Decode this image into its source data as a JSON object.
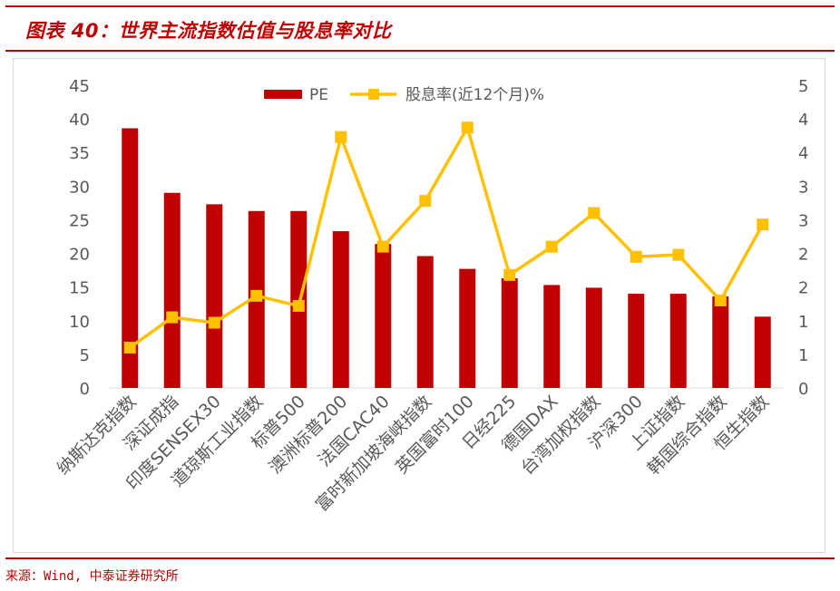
{
  "figure": {
    "title": "图表 40：世界主流指数估值与股息率对比",
    "source": "来源：Wind, 中泰证券研究所"
  },
  "colors": {
    "accent": "#c00000",
    "bar": "#c00000",
    "line": "#ffc000",
    "axis_text": "#595959"
  },
  "chart_data": {
    "type": "bar",
    "title": "世界主流指数估值与股息率对比",
    "categories": [
      "纳斯达克指数",
      "深证成指",
      "印度SENSEX30",
      "道琼斯工业指数",
      "标普500",
      "澳洲标普200",
      "法国CAC40",
      "富时新加坡海峡指数",
      "英国富时100",
      "日经225",
      "德国DAX",
      "台湾加权指数",
      "沪深300",
      "上证指数",
      "韩国综合指数",
      "恒生指数"
    ],
    "series": [
      {
        "name": "PE",
        "type": "bar",
        "axis": "left",
        "values": [
          38.6,
          29.0,
          27.3,
          26.3,
          26.3,
          23.3,
          21.4,
          19.6,
          17.7,
          16.3,
          15.3,
          14.9,
          14.0,
          14.0,
          13.6,
          10.6
        ]
      },
      {
        "name": "股息率(近12个月)%",
        "type": "line",
        "axis": "right",
        "values": [
          0.6,
          1.05,
          0.97,
          1.37,
          1.22,
          3.73,
          2.1,
          2.78,
          3.87,
          1.68,
          2.1,
          2.6,
          1.95,
          1.98,
          1.3,
          2.43
        ]
      }
    ],
    "left_axis": {
      "min": 0,
      "max": 45,
      "step": 5,
      "ticks": [
        "0",
        "5",
        "10",
        "15",
        "20",
        "25",
        "30",
        "35",
        "40",
        "45"
      ]
    },
    "right_axis": {
      "min": 0,
      "max": 4.5,
      "ticks": [
        "0",
        "1",
        "1",
        "2",
        "2",
        "3",
        "3",
        "4",
        "4",
        "5"
      ]
    },
    "legend_position": "top-center",
    "grid": false
  }
}
